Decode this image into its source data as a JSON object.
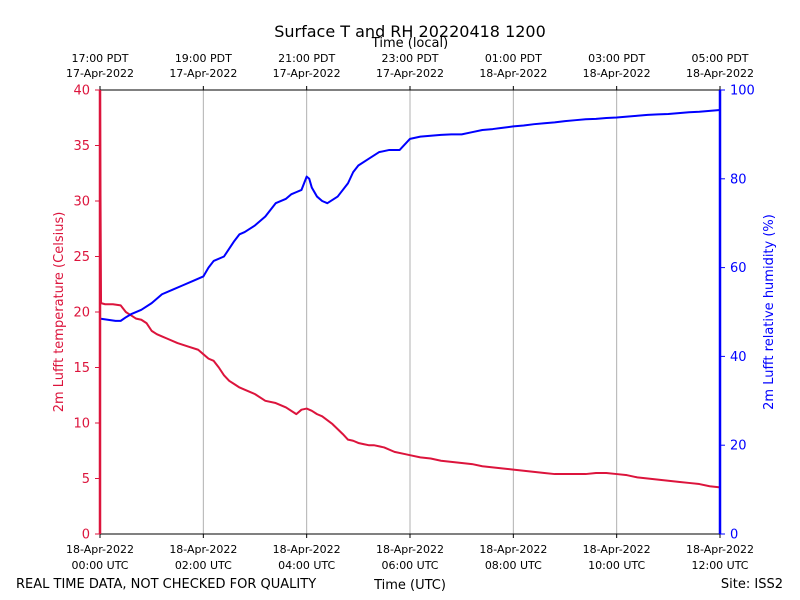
{
  "chart_data": {
    "type": "line",
    "title": "Surface T and RH 20220418 1200",
    "top_axis_label": "Time (local)",
    "xlabel": "Time (UTC)",
    "ylabel_left": "2m Lufft temperature (Celsius)",
    "ylabel_right": "2m Lufft relative humidity (%)",
    "footer_left": "REAL TIME DATA, NOT CHECKED FOR QUALITY",
    "footer_right": "Site: ISS2",
    "x_hours_range": [
      0,
      12
    ],
    "ylim_left": [
      0,
      40
    ],
    "ylim_right": [
      0,
      100
    ],
    "left_ticks": [
      0,
      5,
      10,
      15,
      20,
      25,
      30,
      35,
      40
    ],
    "right_ticks": [
      0,
      20,
      40,
      60,
      80,
      100
    ],
    "grid": "vertical",
    "colors": {
      "temperature": "#dc143c",
      "humidity": "#0000ff",
      "grid": "#b0b0b0",
      "axis": "#000000"
    },
    "x_ticks_utc": [
      {
        "hour": 0,
        "line1": "18-Apr-2022",
        "line2": "00:00 UTC"
      },
      {
        "hour": 2,
        "line1": "18-Apr-2022",
        "line2": "02:00 UTC"
      },
      {
        "hour": 4,
        "line1": "18-Apr-2022",
        "line2": "04:00 UTC"
      },
      {
        "hour": 6,
        "line1": "18-Apr-2022",
        "line2": "06:00 UTC"
      },
      {
        "hour": 8,
        "line1": "18-Apr-2022",
        "line2": "08:00 UTC"
      },
      {
        "hour": 10,
        "line1": "18-Apr-2022",
        "line2": "10:00 UTC"
      },
      {
        "hour": 12,
        "line1": "18-Apr-2022",
        "line2": "12:00 UTC"
      }
    ],
    "x_ticks_local": [
      {
        "hour": 0,
        "line1": "17:00 PDT",
        "line2": "17-Apr-2022"
      },
      {
        "hour": 2,
        "line1": "19:00 PDT",
        "line2": "17-Apr-2022"
      },
      {
        "hour": 4,
        "line1": "21:00 PDT",
        "line2": "17-Apr-2022"
      },
      {
        "hour": 6,
        "line1": "23:00 PDT",
        "line2": "17-Apr-2022"
      },
      {
        "hour": 8,
        "line1": "01:00 PDT",
        "line2": "18-Apr-2022"
      },
      {
        "hour": 10,
        "line1": "03:00 PDT",
        "line2": "18-Apr-2022"
      },
      {
        "hour": 12,
        "line1": "05:00 PDT",
        "line2": "18-Apr-2022"
      }
    ],
    "series": [
      {
        "name": "2m Lufft temperature (Celsius)",
        "axis": "left",
        "x": [
          0,
          0.02,
          0.1,
          0.25,
          0.4,
          0.5,
          0.6,
          0.7,
          0.8,
          0.9,
          1.0,
          1.1,
          1.2,
          1.3,
          1.5,
          1.7,
          1.9,
          2.0,
          2.1,
          2.2,
          2.3,
          2.4,
          2.5,
          2.6,
          2.7,
          2.8,
          3.0,
          3.2,
          3.4,
          3.6,
          3.8,
          3.9,
          4.0,
          4.1,
          4.2,
          4.3,
          4.5,
          4.7,
          4.8,
          4.9,
          5.0,
          5.1,
          5.2,
          5.3,
          5.5,
          5.7,
          5.9,
          6.0,
          6.2,
          6.4,
          6.6,
          6.8,
          7.0,
          7.2,
          7.4,
          7.6,
          7.8,
          8.0,
          8.2,
          8.4,
          8.6,
          8.8,
          9.0,
          9.2,
          9.4,
          9.6,
          9.8,
          10.0,
          10.2,
          10.4,
          10.6,
          10.8,
          11.0,
          11.2,
          11.4,
          11.6,
          11.8,
          12.0
        ],
        "values": [
          40,
          20.8,
          20.7,
          20.7,
          20.6,
          20.0,
          19.7,
          19.4,
          19.3,
          19.0,
          18.3,
          18.0,
          17.8,
          17.6,
          17.2,
          16.9,
          16.6,
          16.2,
          15.8,
          15.6,
          15.0,
          14.3,
          13.8,
          13.5,
          13.2,
          13.0,
          12.6,
          12.0,
          11.8,
          11.4,
          10.8,
          11.2,
          11.3,
          11.1,
          10.8,
          10.6,
          9.9,
          9.0,
          8.5,
          8.4,
          8.2,
          8.1,
          8.0,
          8.0,
          7.8,
          7.4,
          7.2,
          7.1,
          6.9,
          6.8,
          6.6,
          6.5,
          6.4,
          6.3,
          6.1,
          6.0,
          5.9,
          5.8,
          5.7,
          5.6,
          5.5,
          5.4,
          5.4,
          5.4,
          5.4,
          5.5,
          5.5,
          5.4,
          5.3,
          5.1,
          5.0,
          4.9,
          4.8,
          4.7,
          4.6,
          4.5,
          4.3,
          4.2
        ]
      },
      {
        "name": "2m Lufft relative humidity (%)",
        "axis": "right",
        "x": [
          0,
          0.3,
          0.4,
          0.5,
          0.6,
          0.8,
          1.0,
          1.2,
          1.4,
          1.6,
          1.8,
          2.0,
          2.1,
          2.2,
          2.4,
          2.6,
          2.7,
          2.8,
          3.0,
          3.2,
          3.4,
          3.6,
          3.7,
          3.8,
          3.9,
          4.0,
          4.05,
          4.1,
          4.2,
          4.3,
          4.4,
          4.6,
          4.8,
          4.9,
          5.0,
          5.2,
          5.4,
          5.6,
          5.8,
          6.0,
          6.2,
          6.4,
          6.6,
          6.8,
          7.0,
          7.2,
          7.4,
          7.6,
          7.8,
          8.0,
          8.2,
          8.4,
          8.6,
          8.8,
          9.0,
          9.2,
          9.4,
          9.6,
          9.8,
          10.0,
          10.2,
          10.4,
          10.6,
          10.8,
          11.0,
          11.2,
          11.4,
          11.6,
          11.8,
          12.0
        ],
        "values": [
          48.5,
          48.0,
          48.0,
          48.8,
          49.5,
          50.5,
          52.0,
          54.0,
          55.0,
          56.0,
          57.0,
          58.0,
          60.0,
          61.5,
          62.5,
          66.0,
          67.5,
          68.0,
          69.5,
          71.5,
          74.5,
          75.5,
          76.5,
          77.0,
          77.5,
          80.5,
          80.0,
          78.0,
          76.0,
          75.0,
          74.5,
          76.0,
          79.0,
          81.5,
          83.0,
          84.5,
          86.0,
          86.5,
          86.5,
          89.0,
          89.5,
          89.7,
          89.9,
          90.0,
          90.0,
          90.5,
          91.0,
          91.2,
          91.5,
          91.8,
          92.0,
          92.3,
          92.5,
          92.7,
          93.0,
          93.2,
          93.4,
          93.5,
          93.7,
          93.8,
          94.0,
          94.2,
          94.4,
          94.5,
          94.6,
          94.8,
          95.0,
          95.1,
          95.3,
          95.5
        ]
      }
    ]
  }
}
